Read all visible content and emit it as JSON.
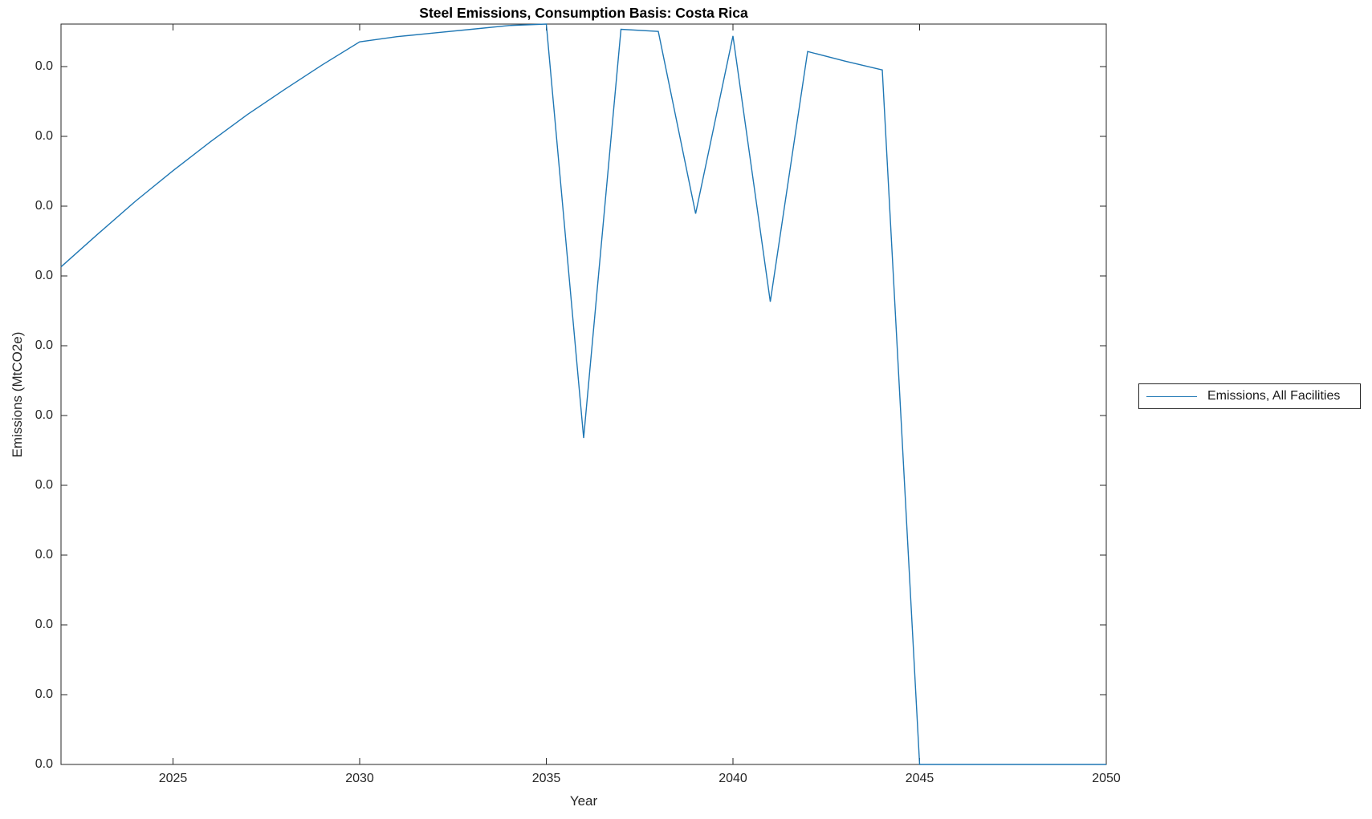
{
  "chart_data": {
    "type": "line",
    "title": "Steel Emissions, Consumption Basis: Costa Rica",
    "xlabel": "Year",
    "ylabel": "Emissions (MtCO2e)",
    "xlim": [
      2022,
      2050
    ],
    "x_ticks": [
      2025,
      2030,
      2035,
      2040,
      2045,
      2050
    ],
    "y_tick_labels": [
      "0.0",
      "0.0",
      "0.0",
      "0.0",
      "0.0",
      "0.0",
      "0.0",
      "0.0",
      "0.0",
      "0.0",
      "0.0"
    ],
    "grid": false,
    "box": true,
    "legend_position": "right-outside",
    "legend": [
      "Emissions, All Facilities"
    ],
    "line_color": "#1f77b4",
    "axis_color": "#262626",
    "series": [
      {
        "name": "Emissions, All Facilities",
        "x": [
          2022,
          2023,
          2024,
          2025,
          2026,
          2027,
          2028,
          2029,
          2030,
          2031,
          2032,
          2033,
          2034,
          2035,
          2036,
          2037,
          2038,
          2039,
          2040,
          2041,
          2042,
          2043,
          2044,
          2045,
          2046,
          2047,
          2048,
          2049,
          2050
        ],
        "y_axis_fraction": [
          0.672,
          0.717,
          0.761,
          0.802,
          0.841,
          0.878,
          0.912,
          0.945,
          0.976,
          0.983,
          0.988,
          0.993,
          0.998,
          1.0,
          0.441,
          0.993,
          0.99,
          0.744,
          0.984,
          0.625,
          0.963,
          0.95,
          0.938,
          0.0,
          0.0,
          0.0,
          0.0,
          0.0,
          0.0
        ]
      }
    ]
  }
}
